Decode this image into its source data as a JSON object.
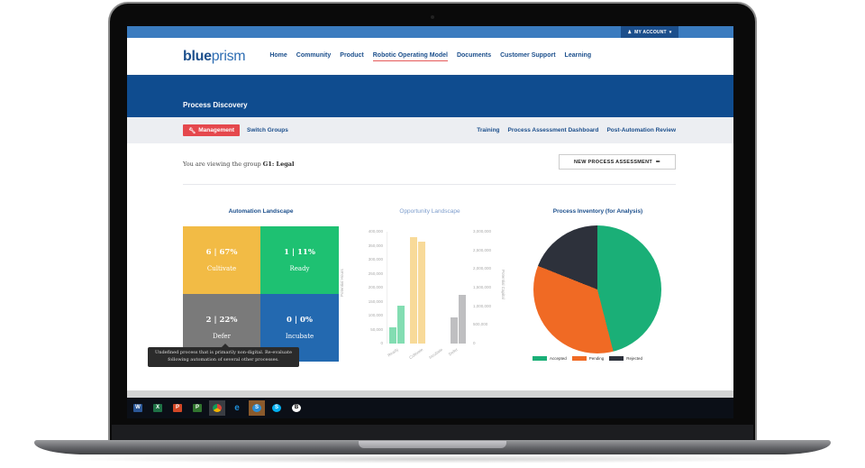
{
  "account": {
    "label": "MY ACCOUNT",
    "icon": "user-icon",
    "caret": "▾"
  },
  "brand": {
    "bold": "blue",
    "light": "prism"
  },
  "nav": {
    "items": [
      {
        "label": "Home",
        "active": false
      },
      {
        "label": "Community",
        "active": false
      },
      {
        "label": "Product",
        "active": false
      },
      {
        "label": "Robotic Operating Model",
        "active": true
      },
      {
        "label": "Documents",
        "active": false
      },
      {
        "label": "Customer Support",
        "active": false
      },
      {
        "label": "Learning",
        "active": false
      }
    ]
  },
  "page": {
    "title": "Process Discovery"
  },
  "subnav": {
    "management_label": "Management",
    "management_icon": "wrench-icon",
    "switch_groups": "Switch Groups",
    "right_links": [
      "Training",
      "Process Assessment Dashboard",
      "Post-Automation Review"
    ]
  },
  "group": {
    "prefix": "You are viewing the group",
    "name": "G1: Legal"
  },
  "new_assessment": {
    "label": "NEW PROCESS ASSESSMENT",
    "icon": "pencil-icon"
  },
  "automation_landscape": {
    "title": "Automation Landscape",
    "cells": [
      {
        "value": "6 | 67%",
        "label": "Cultivate",
        "color": "#f2bb45"
      },
      {
        "value": "1 | 11%",
        "label": "Ready",
        "color": "#1ec172"
      },
      {
        "value": "2 | 22%",
        "label": "Defer",
        "color": "#7a7a7a"
      },
      {
        "value": "0 | 0%",
        "label": "Incubate",
        "color": "#2369b0"
      }
    ],
    "tooltip": "Undefined process that is primarily non-digital. Re-evaluate following automation of several other processes."
  },
  "opportunity_landscape": {
    "title": "Opportunity Landscape"
  },
  "process_inventory": {
    "title": "Process Inventory (for Analysis)"
  },
  "colors": {
    "accent": "#1c4f8c",
    "hero": "#0f4c8f",
    "danger": "#e5484d",
    "accepted": "#1aaf77",
    "pending": "#f06a24",
    "rejected": "#2d313b"
  },
  "taskbar": {
    "apps": [
      {
        "name": "word",
        "letter": "W",
        "color": "#2b5797"
      },
      {
        "name": "excel",
        "letter": "X",
        "color": "#1e7145"
      },
      {
        "name": "powerpoint",
        "letter": "P",
        "color": "#d24726"
      },
      {
        "name": "project",
        "letter": "P",
        "color": "#31752f"
      },
      {
        "name": "chrome",
        "letter": "",
        "color": "#e8a93a"
      },
      {
        "name": "internet-explorer",
        "letter": "e",
        "color": "#1f8fd8"
      },
      {
        "name": "skype-business",
        "letter": "S",
        "color": "#2b8fd6"
      },
      {
        "name": "skype",
        "letter": "S",
        "color": "#00aff0"
      },
      {
        "name": "other-app",
        "letter": "B",
        "color": "#ffffff"
      }
    ]
  },
  "chart_data": [
    {
      "type": "bar",
      "title": "Opportunity Landscape",
      "categories": [
        "Ready",
        "Cultivate",
        "Incubate",
        "Defer"
      ],
      "series": [
        {
          "name": "Potential Hours",
          "axis": "left",
          "values": [
            58000,
            380000,
            0,
            95000
          ]
        },
        {
          "name": "Potential Capital",
          "axis": "right",
          "values": [
            1010000,
            2740000,
            0,
            1310000
          ]
        }
      ],
      "ylabel": "Potential Hours",
      "y2label": "Potential Capital",
      "ylim": [
        0,
        400000
      ],
      "y2lim": [
        0,
        3000000
      ],
      "yticks": [
        "0",
        "50,000",
        "100,000",
        "150,000",
        "200,000",
        "250,000",
        "300,000",
        "350,000",
        "400,000"
      ],
      "y2ticks": [
        "0",
        "500,000",
        "1,000,000",
        "1,500,000",
        "2,000,000",
        "2,500,000",
        "3,000,000"
      ],
      "category_colors": [
        "#1ec172",
        "#f2bb45",
        "#2369b0",
        "#8a8a8e"
      ]
    },
    {
      "type": "pie",
      "title": "Process Inventory (for Analysis)",
      "categories": [
        "Accepted",
        "Pending",
        "Rejected"
      ],
      "values": [
        46,
        35,
        19
      ],
      "colors": [
        "#1aaf77",
        "#f06a24",
        "#2d313b"
      ],
      "legend_position": "bottom"
    }
  ]
}
